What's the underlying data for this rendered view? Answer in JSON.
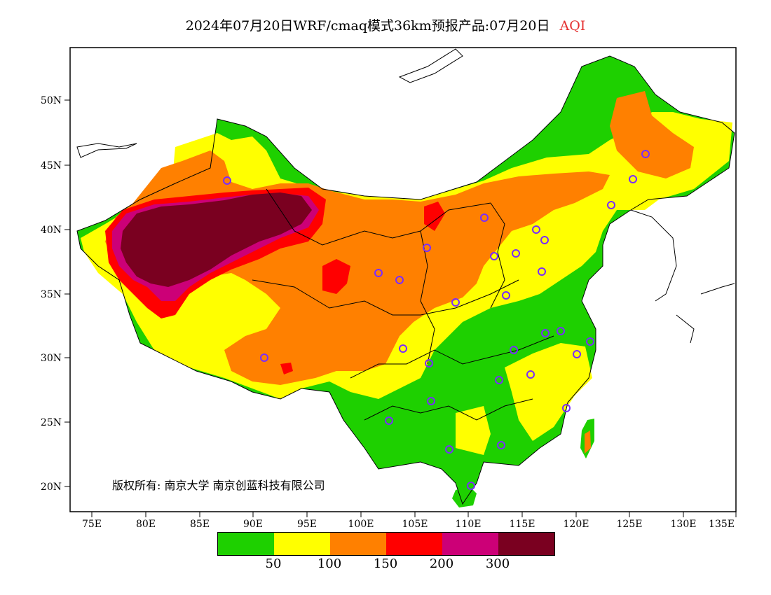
{
  "title": {
    "main": "2024年07月20日WRF/cmaq模式36km预报产品:07月20日",
    "product": "AQI"
  },
  "axes": {
    "lat_labels": [
      "50N",
      "45N",
      "40N",
      "35N",
      "30N",
      "25N",
      "20N"
    ],
    "lon_labels": [
      "75E",
      "80E",
      "85E",
      "90E",
      "95E",
      "100E",
      "105E",
      "110E",
      "115E",
      "120E",
      "125E",
      "130E",
      "135E"
    ]
  },
  "copyright": "版权所有: 南京大学  南京创蓝科技有限公司",
  "legend": {
    "colors": [
      "#1ed000",
      "#ffff00",
      "#ff8000",
      "#ff0000",
      "#cc0077",
      "#7a0020"
    ],
    "labels": [
      "50",
      "100",
      "150",
      "200",
      "300"
    ]
  },
  "map": {
    "lon_range": [
      73,
      135
    ],
    "lat_range": [
      18,
      54
    ],
    "grid": false,
    "station_marker": "circle",
    "station_color": "#7a2cff"
  }
}
